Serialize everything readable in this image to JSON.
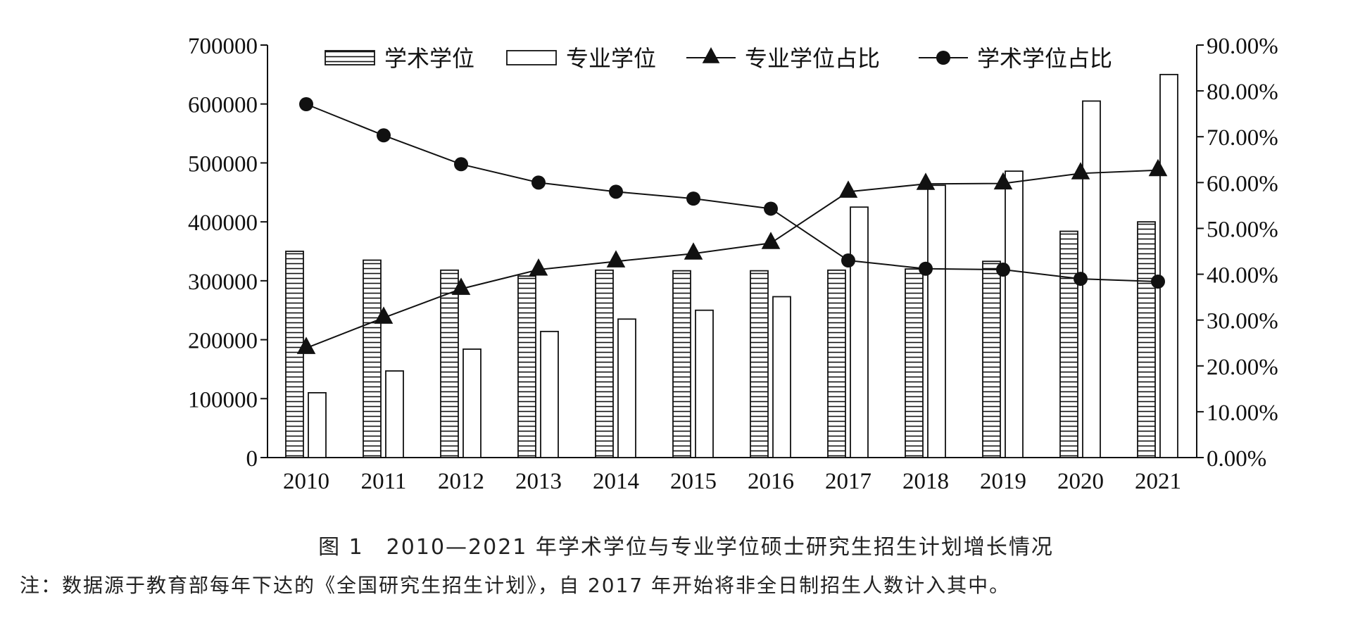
{
  "chart_data": {
    "type": "bar",
    "categories": [
      "2010",
      "2011",
      "2012",
      "2013",
      "2014",
      "2015",
      "2016",
      "2017",
      "2018",
      "2019",
      "2020",
      "2021"
    ],
    "series": [
      {
        "name": "学术学位",
        "type": "bar",
        "axis": "left",
        "pattern": "horizontal-hatch",
        "values": [
          350000,
          335000,
          318000,
          308000,
          318000,
          317000,
          317000,
          318000,
          320000,
          333000,
          384000,
          400000
        ]
      },
      {
        "name": "专业学位",
        "type": "bar",
        "axis": "left",
        "pattern": "hollow",
        "values": [
          110000,
          147000,
          184000,
          214000,
          235000,
          250000,
          273000,
          425000,
          462000,
          486000,
          605000,
          650000
        ]
      },
      {
        "name": "专业学位占比",
        "type": "line",
        "axis": "right",
        "marker": "triangle",
        "values": [
          0.239,
          0.305,
          0.368,
          0.41,
          0.428,
          0.445,
          0.468,
          0.58,
          0.597,
          0.598,
          0.62,
          0.627
        ]
      },
      {
        "name": "学术学位占比",
        "type": "line",
        "axis": "right",
        "marker": "circle",
        "values": [
          0.771,
          0.703,
          0.64,
          0.6,
          0.58,
          0.565,
          0.543,
          0.43,
          0.412,
          0.41,
          0.39,
          0.384
        ]
      }
    ],
    "y_left": {
      "min": 0,
      "max": 700000,
      "ticks": [
        "0",
        "100000",
        "200000",
        "300000",
        "400000",
        "500000",
        "600000",
        "700000"
      ]
    },
    "y_right": {
      "min": 0,
      "max": 0.9,
      "ticks": [
        "0.00%",
        "10.00%",
        "20.00%",
        "30.00%",
        "40.00%",
        "50.00%",
        "60.00%",
        "70.00%",
        "80.00%",
        "90.00%"
      ]
    },
    "legend": {
      "placement": "top",
      "items": [
        "学术学位",
        "专业学位",
        "专业学位占比",
        "学术学位占比"
      ]
    },
    "grid": false
  },
  "caption": "图 1　2010—2021 年学术学位与专业学位硕士研究生招生计划增长情况",
  "note": "注：数据源于教育部每年下达的《全国研究生招生计划》，自 2017 年开始将非全日制招生人数计入其中。",
  "colors": {
    "ink": "#111111",
    "bar_fill": "#ffffff"
  }
}
